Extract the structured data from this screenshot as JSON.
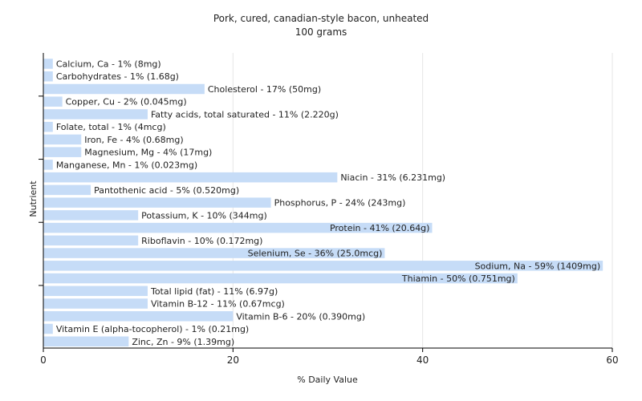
{
  "chart_data": {
    "type": "bar",
    "orientation": "horizontal",
    "title": "Pork, cured, canadian-style bacon, unheated",
    "subtitle": "100 grams",
    "xlabel": "% Daily Value",
    "ylabel": "Nutrient",
    "xlim": [
      0,
      60
    ],
    "xticks": [
      0,
      20,
      40,
      60
    ],
    "grid": true,
    "bar_color": "#c6dcf7",
    "categories": [
      "Calcium, Ca",
      "Carbohydrates",
      "Cholesterol",
      "Copper, Cu",
      "Fatty acids, total saturated",
      "Folate, total",
      "Iron, Fe",
      "Magnesium, Mg",
      "Manganese, Mn",
      "Niacin",
      "Pantothenic acid",
      "Phosphorus, P",
      "Potassium, K",
      "Protein",
      "Riboflavin",
      "Selenium, Se",
      "Sodium, Na",
      "Thiamin",
      "Total lipid (fat)",
      "Vitamin B-12",
      "Vitamin B-6",
      "Vitamin E (alpha-tocopherol)",
      "Zinc, Zn"
    ],
    "values": [
      1,
      1,
      17,
      2,
      11,
      1,
      4,
      4,
      1,
      31,
      5,
      24,
      10,
      41,
      10,
      36,
      59,
      50,
      11,
      11,
      20,
      1,
      9
    ],
    "labels": [
      "Calcium, Ca - 1% (8mg)",
      "Carbohydrates - 1% (1.68g)",
      "Cholesterol - 17% (50mg)",
      "Copper, Cu - 2% (0.045mg)",
      "Fatty acids, total saturated - 11% (2.220g)",
      "Folate, total - 1% (4mcg)",
      "Iron, Fe - 4% (0.68mg)",
      "Magnesium, Mg - 4% (17mg)",
      "Manganese, Mn - 1% (0.023mg)",
      "Niacin - 31% (6.231mg)",
      "Pantothenic acid - 5% (0.520mg)",
      "Phosphorus, P - 24% (243mg)",
      "Potassium, K - 10% (344mg)",
      "Protein - 41% (20.64g)",
      "Riboflavin - 10% (0.172mg)",
      "Selenium, Se - 36% (25.0mcg)",
      "Sodium, Na - 59% (1409mg)",
      "Thiamin - 50% (0.751mg)",
      "Total lipid (fat) - 11% (6.97g)",
      "Vitamin B-12 - 11% (0.67mcg)",
      "Vitamin B-6 - 20% (0.390mg)",
      "Vitamin E (alpha-tocopherol) - 1% (0.21mg)",
      "Zinc, Zn - 9% (1.39mg)"
    ]
  }
}
